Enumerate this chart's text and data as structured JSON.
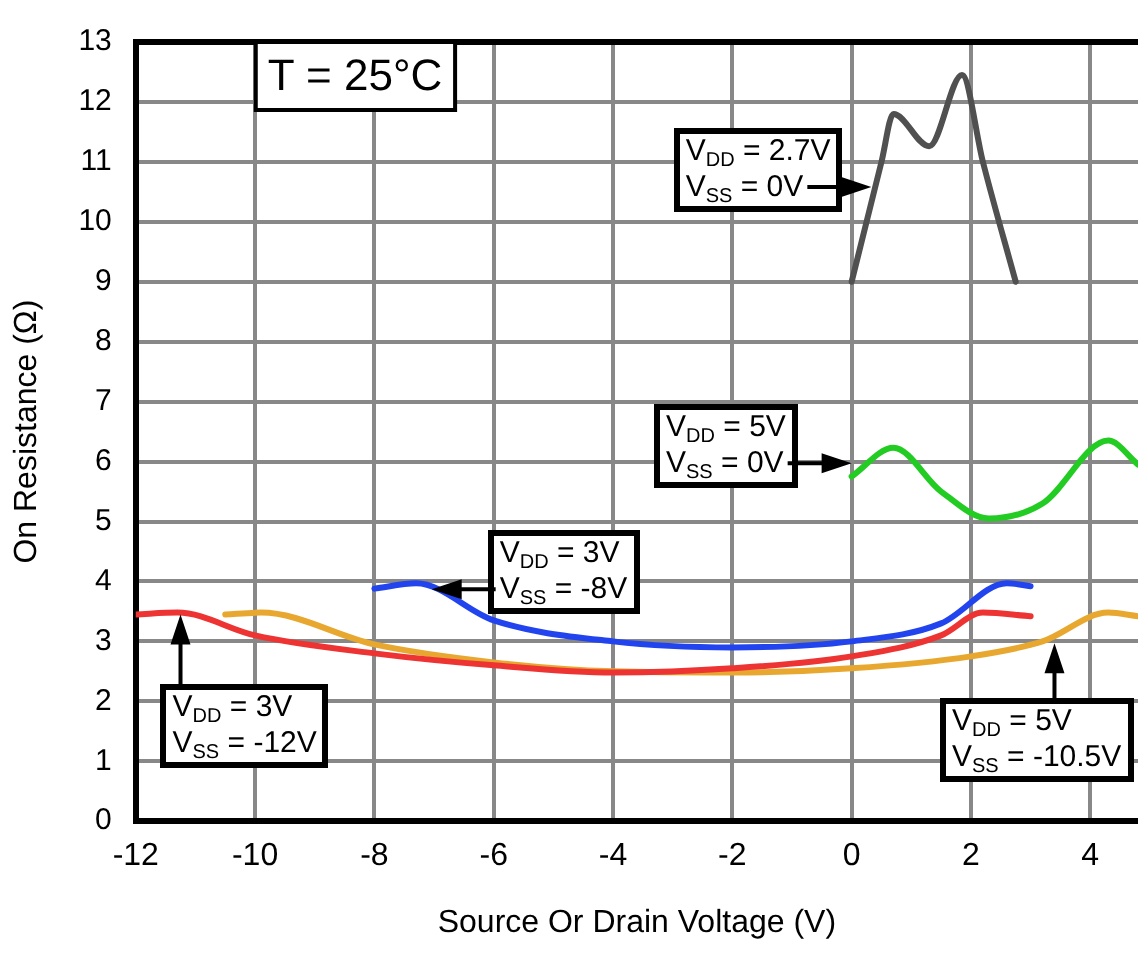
{
  "chart_data": {
    "type": "line",
    "title": "T = 25°C",
    "xlabel": "Source Or Drain Voltage (V)",
    "ylabel": "On Resistance (Ω)",
    "xlim": [
      -12,
      4.8
    ],
    "xticks": [
      -12,
      -10,
      -8,
      -6,
      -4,
      -2,
      0,
      2,
      4
    ],
    "ylim": [
      0,
      13
    ],
    "yticks": [
      0,
      1,
      2,
      3,
      4,
      5,
      6,
      7,
      8,
      9,
      10,
      11,
      12,
      13
    ],
    "grid": true,
    "legend": false,
    "marker": "none",
    "line_style": "solid",
    "series": [
      {
        "color": "#505050",
        "x": [
          0,
          0.5,
          0.7,
          1.3,
          1.85,
          2.2,
          2.75
        ],
        "values": [
          9,
          11,
          11.8,
          11.26,
          12.45,
          11,
          9
        ]
      },
      {
        "color": "#22cc22",
        "x": [
          0,
          0.7,
          1.5,
          2.3,
          3.2,
          4.3,
          4.8
        ],
        "values": [
          5.75,
          6.23,
          5.5,
          5.05,
          5.3,
          6.35,
          5.95
        ]
      },
      {
        "color": "#2244ee",
        "x": [
          -8,
          -7.3,
          -6,
          -4,
          -2,
          0,
          1.5,
          2.6,
          3
        ],
        "values": [
          3.88,
          3.97,
          3.35,
          3,
          2.9,
          3,
          3.3,
          3.97,
          3.92
        ]
      },
      {
        "color": "#ee3333",
        "x": [
          -12,
          -11.3,
          -10,
          -8,
          -6,
          -4,
          -2,
          0,
          1.5,
          2.2,
          3
        ],
        "values": [
          3.45,
          3.48,
          3.1,
          2.8,
          2.6,
          2.48,
          2.55,
          2.75,
          3.1,
          3.48,
          3.42
        ]
      },
      {
        "color": "#e8a830",
        "x": [
          -10.5,
          -9.9,
          -8,
          -6,
          -4,
          -2,
          0,
          2,
          3.2,
          4.3,
          4.8
        ],
        "values": [
          3.45,
          3.48,
          2.95,
          2.65,
          2.5,
          2.48,
          2.55,
          2.75,
          3,
          3.48,
          3.42
        ]
      }
    ],
    "annotations": [
      "V$_{DD}$ = 2.7V",
      {
        "text": "V$_{SS}$ = 0V",
        "x": 0.33,
        "y": 10.58
      },
      "V$_{DD}$ = 5V",
      {
        "text": "V$_{SS}$ = 0V",
        "x": 0,
        "y": 5.97
      },
      "V$_{DD}$ = 3V",
      {
        "text": "V$_{SS}$ = -8V",
        "x": -7.04,
        "y": 3.87
      },
      {
        "text": "V$_{DD}$ = 3V",
        "x": -11.25,
        "y": 3.45
      },
      "V$_{SS}$ = -12V",
      {
        "text": "V$_{DD}$ = 5V",
        "x": 3.4,
        "y": 2.97
      },
      "V$_{SS}$ = -10.5V"
    ]
  }
}
